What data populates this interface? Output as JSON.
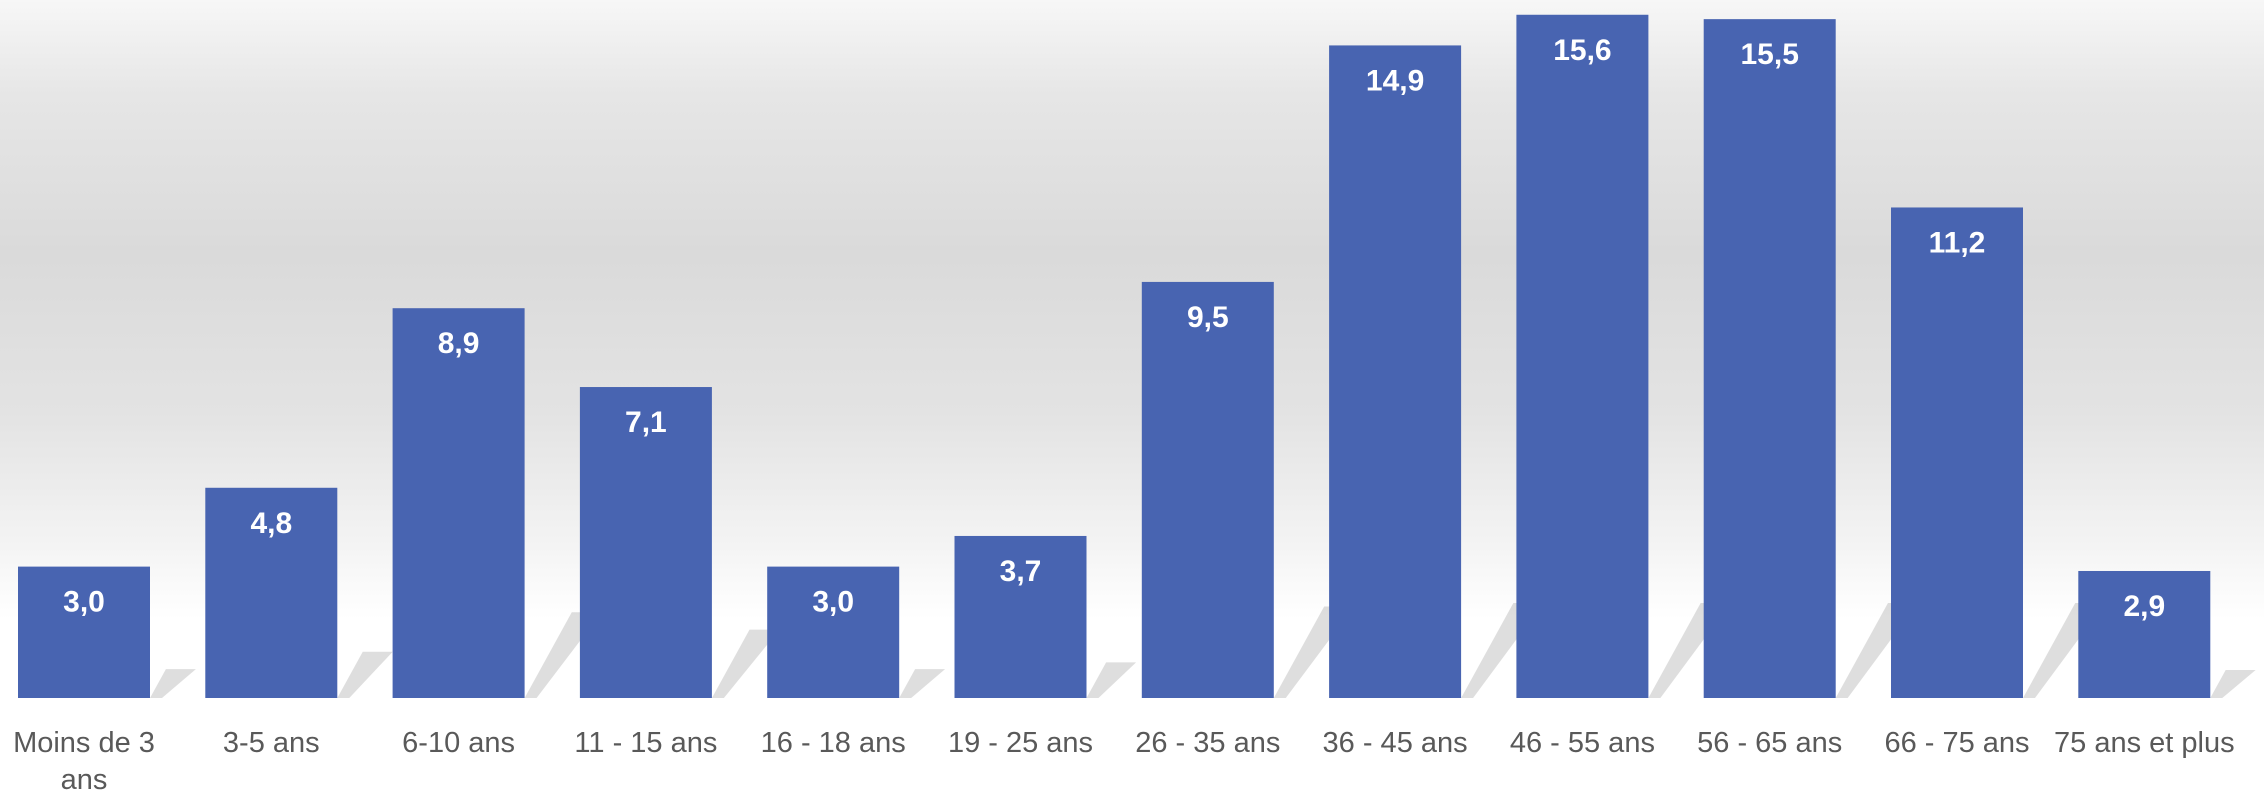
{
  "chart_data": {
    "type": "bar",
    "title": "",
    "xlabel": "",
    "ylabel": "",
    "categories": [
      [
        "Moins de 3",
        "ans"
      ],
      [
        "3-5 ans"
      ],
      [
        "6-10 ans"
      ],
      [
        "11 - 15 ans"
      ],
      [
        "16 - 18 ans"
      ],
      [
        "19 - 25 ans"
      ],
      [
        "26 - 35 ans"
      ],
      [
        "36 - 45 ans"
      ],
      [
        "46 - 55 ans"
      ],
      [
        "56 - 65 ans"
      ],
      [
        "66 - 75 ans"
      ],
      [
        "75 ans et plus"
      ]
    ],
    "values": [
      3.0,
      4.8,
      8.9,
      7.1,
      3.0,
      3.7,
      9.5,
      14.9,
      15.6,
      15.5,
      11.2,
      2.9
    ],
    "value_labels": [
      "3,0",
      "4,8",
      "8,9",
      "7,1",
      "3,0",
      "3,7",
      "9,5",
      "14,9",
      "15,6",
      "15,5",
      "11,2",
      "2,9"
    ],
    "ylim": [
      0,
      15.8
    ],
    "grid": false,
    "legend": "none",
    "colors": {
      "bar": "#4864b1",
      "data_label": "#ffffff",
      "category_label": "#595959"
    }
  }
}
